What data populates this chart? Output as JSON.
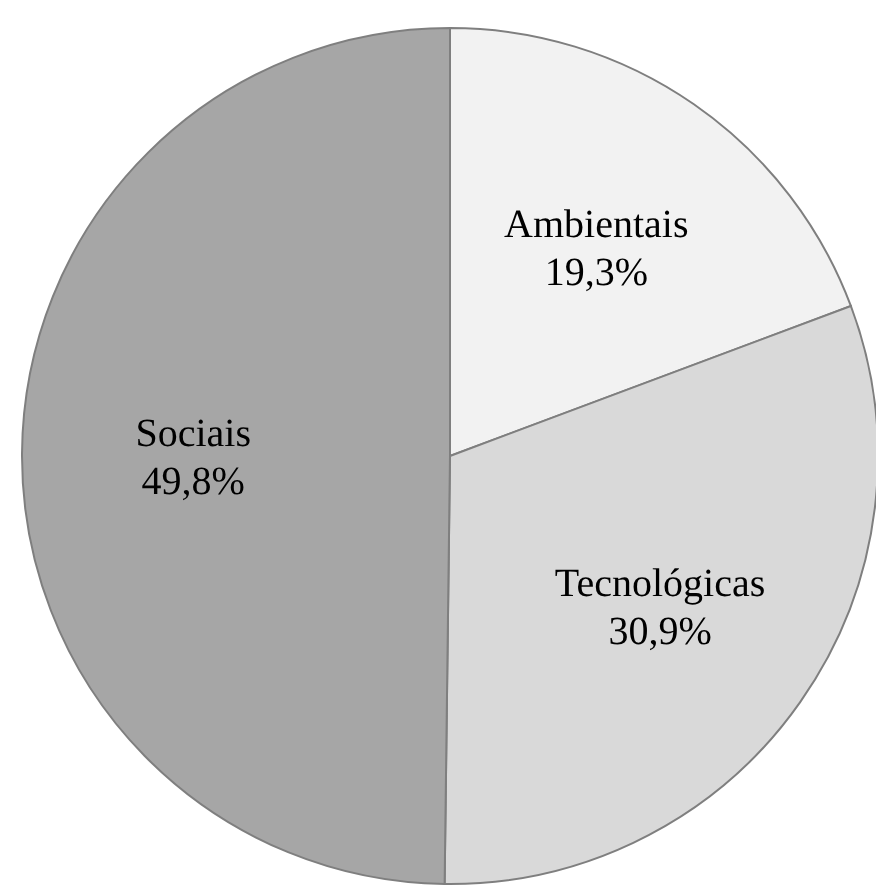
{
  "chart_data": {
    "type": "pie",
    "categories": [
      "Ambientais",
      "Tecnológicas",
      "Sociais"
    ],
    "values": [
      19.3,
      30.9,
      49.8
    ],
    "value_labels": [
      "19,3%",
      "30,9%",
      "49,8%"
    ],
    "colors": [
      "#f2f2f2",
      "#d9d9d9",
      "#a6a6a6"
    ],
    "legend": false
  }
}
